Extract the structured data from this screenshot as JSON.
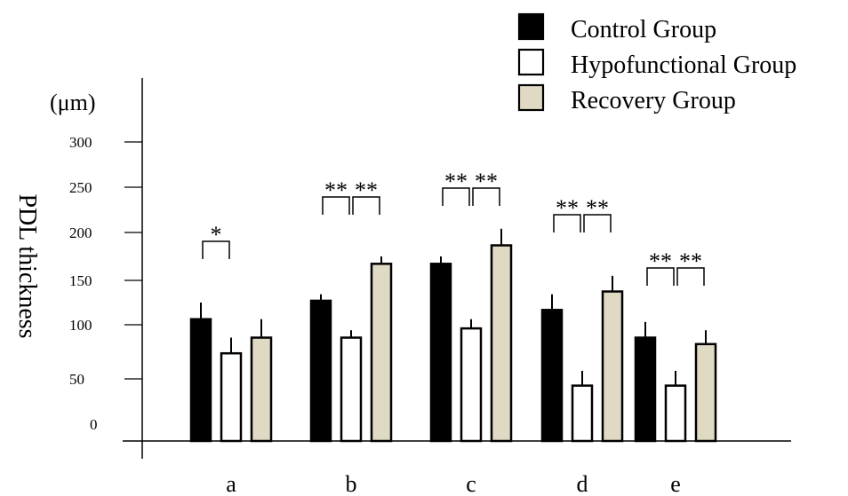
{
  "chart_data": {
    "type": "bar",
    "categories": [
      "a",
      "b",
      "c",
      "d",
      "e"
    ],
    "ylabel": "PDL thickness",
    "unit": "(μm)",
    "yticks": [
      "0",
      "50",
      "100",
      "150",
      "200",
      "250",
      "300"
    ],
    "ylim": [
      0,
      300
    ],
    "series": [
      {
        "name": "Control Group",
        "color": "#000000",
        "values": [
          132,
          152,
          192,
          142,
          112
        ],
        "errors": [
          18,
          7,
          8,
          17,
          17
        ]
      },
      {
        "name": "Hypofunctional Group",
        "color": "#ffffff",
        "values": [
          95,
          112,
          122,
          60,
          60
        ],
        "errors": [
          17,
          8,
          10,
          16,
          16
        ]
      },
      {
        "name": "Recovery Group",
        "color": "#e0dac4",
        "values": [
          112,
          192,
          212,
          162,
          105
        ],
        "errors": [
          20,
          8,
          18,
          17,
          15
        ]
      }
    ],
    "significance": [
      {
        "category": "a",
        "from": 0,
        "to": 1,
        "label": "*"
      },
      {
        "category": "b",
        "from": 0,
        "to": 1,
        "label": "**"
      },
      {
        "category": "b",
        "from": 1,
        "to": 2,
        "label": "**"
      },
      {
        "category": "c",
        "from": 0,
        "to": 1,
        "label": "**"
      },
      {
        "category": "c",
        "from": 1,
        "to": 2,
        "label": "**"
      },
      {
        "category": "d",
        "from": 0,
        "to": 1,
        "label": "**"
      },
      {
        "category": "d",
        "from": 1,
        "to": 2,
        "label": "**"
      },
      {
        "category": "e",
        "from": 0,
        "to": 1,
        "label": "**"
      },
      {
        "category": "e",
        "from": 1,
        "to": 2,
        "label": "**"
      }
    ],
    "legend_position": "top-right",
    "grid": false
  }
}
